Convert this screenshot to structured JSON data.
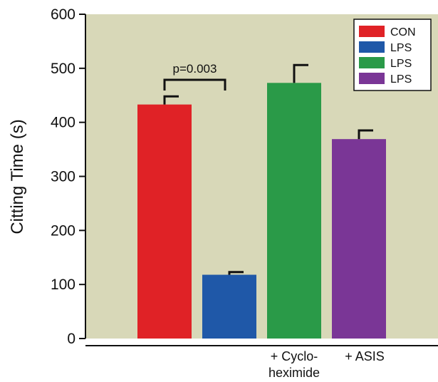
{
  "chart_data": {
    "type": "bar",
    "ylabel": "Citting Time (s)",
    "ylim": [
      0,
      600
    ],
    "yticks": [
      0,
      100,
      200,
      300,
      400,
      500,
      600
    ],
    "plot_background": "#d8d8b8",
    "grid": false,
    "legend_position": "top-right",
    "legend": [
      {
        "label": "CON",
        "color": "#e02226"
      },
      {
        "label": "LPS",
        "color": "#1f58a8"
      },
      {
        "label": "LPS",
        "color": "#2a9a48"
      },
      {
        "label": "LPS",
        "color": "#7a3696"
      }
    ],
    "bars": [
      {
        "value": 433,
        "error": 15,
        "color": "#e02226",
        "label_lines": []
      },
      {
        "value": 118,
        "error": 5,
        "color": "#1f58a8",
        "label_lines": []
      },
      {
        "value": 473,
        "error": 33,
        "color": "#2a9a48",
        "label_lines": [
          "+ Cyclo-",
          "heximide"
        ]
      },
      {
        "value": 369,
        "error": 16,
        "color": "#7a3696",
        "label_lines": [
          "+ ASIS"
        ]
      }
    ],
    "annotations": [
      {
        "text": "p=0.003",
        "from_bar": 0,
        "to_bar": 1
      }
    ]
  }
}
